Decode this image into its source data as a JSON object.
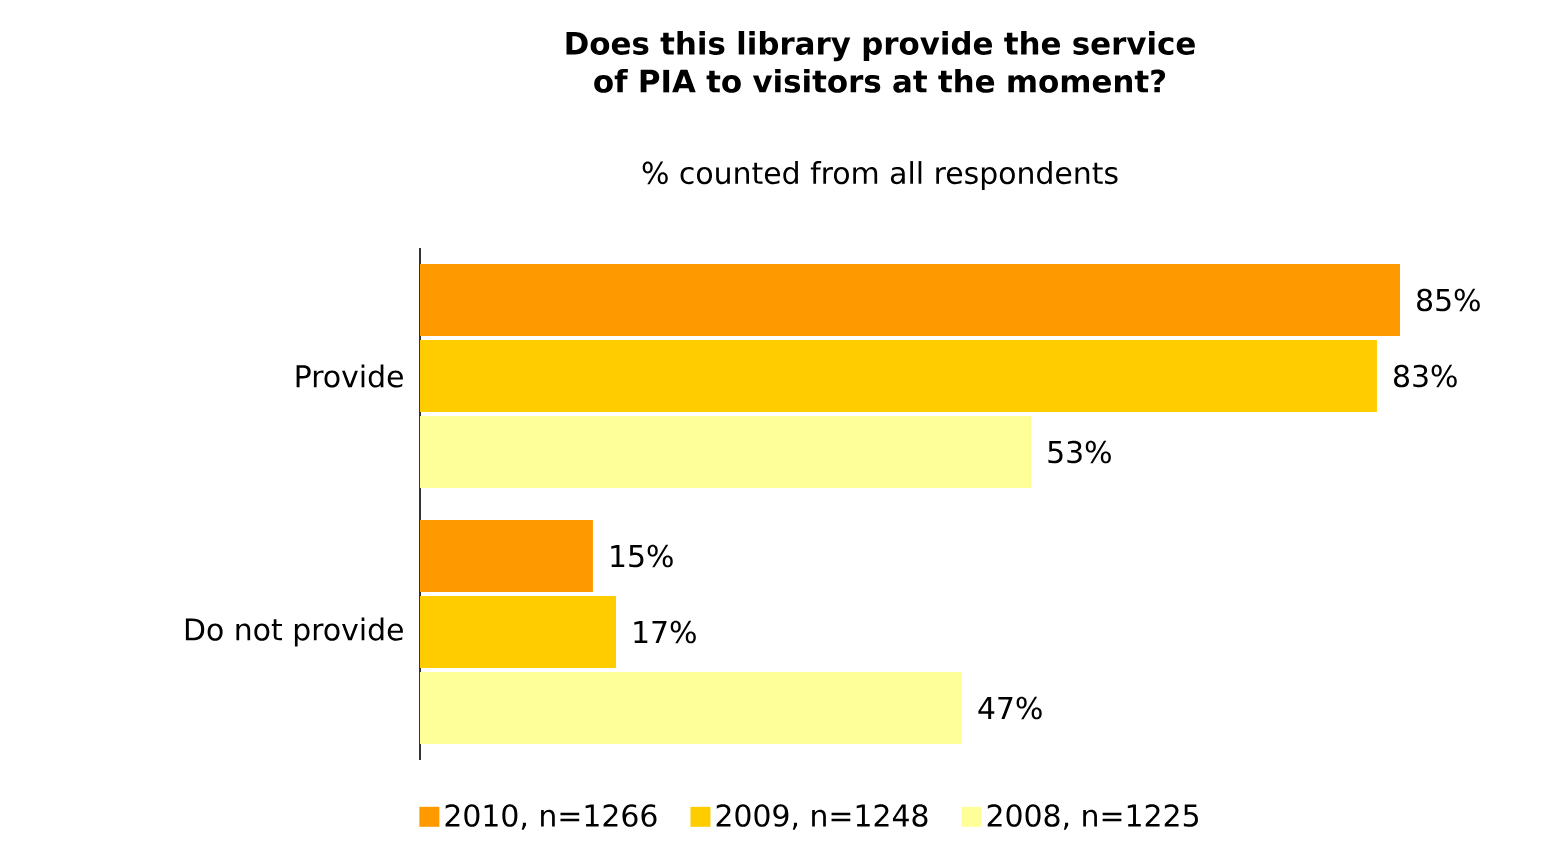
{
  "chart_data": {
    "type": "bar",
    "orientation": "horizontal",
    "title": "Does this library provide the service of PIA to visitors at the moment?",
    "subtitle": "% counted from all respondents",
    "categories": [
      "Provide",
      "Do not provide"
    ],
    "series": [
      {
        "name": "2010, n=1266",
        "color": "#ff9900",
        "values": [
          85,
          15
        ],
        "value_labels": [
          "85%",
          "15%"
        ]
      },
      {
        "name": "2009, n=1248",
        "color": "#ffcc00",
        "values": [
          83,
          17
        ],
        "value_labels": [
          "83%",
          "17%"
        ]
      },
      {
        "name": "2008, n=1225",
        "color": "#ffff99",
        "values": [
          53,
          47
        ],
        "value_labels": [
          "53%",
          "47%"
        ]
      }
    ],
    "legend": "bottom"
  }
}
